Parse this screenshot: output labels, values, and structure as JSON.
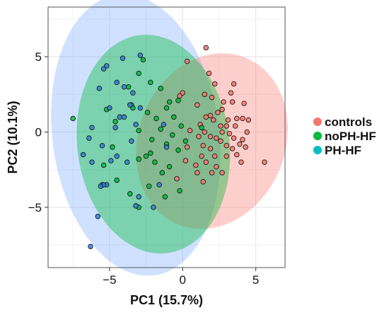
{
  "chart_data": {
    "type": "scatter",
    "title": "",
    "xlabel": "PC1 (15.7%)",
    "ylabel": "PC2 (10.1%)",
    "xlim": [
      -9.2,
      7.0
    ],
    "ylim": [
      -9.0,
      8.3
    ],
    "x_ticks": [
      -5,
      0,
      5
    ],
    "x_tick_labels": [
      "−5",
      "0",
      "5"
    ],
    "y_ticks": [
      -5,
      0,
      5
    ],
    "y_tick_labels": [
      "−5",
      "0",
      "5"
    ],
    "grid": true,
    "legend_position": "right",
    "series": [
      {
        "name": "controls",
        "color": "#f8766d",
        "ellipse": {
          "cx": 2.0,
          "cy": -0.6,
          "rx": 6.0,
          "ry": 5.0,
          "angle_deg": 65
        },
        "points": [
          [
            1.6,
            5.6
          ],
          [
            3.5,
            3.2
          ],
          [
            0.3,
            4.7
          ],
          [
            1.8,
            3.9
          ],
          [
            2.2,
            3.2
          ],
          [
            3.3,
            2.6
          ],
          [
            0.0,
            2.6
          ],
          [
            -0.2,
            2.4
          ],
          [
            2.0,
            2.3
          ],
          [
            3.4,
            2.0
          ],
          [
            1.5,
            2.5
          ],
          [
            2.8,
            2.0
          ],
          [
            4.2,
            1.9
          ],
          [
            2.7,
            1.5
          ],
          [
            2.4,
            1.3
          ],
          [
            1.0,
            1.8
          ],
          [
            1.6,
            1.0
          ],
          [
            1.9,
            1.1
          ],
          [
            2.1,
            0.8
          ],
          [
            3.1,
            0.8
          ],
          [
            3.7,
            0.9
          ],
          [
            4.1,
            0.9
          ],
          [
            4.5,
            0.8
          ],
          [
            1.2,
            0.5
          ],
          [
            2.6,
            0.4
          ],
          [
            3.0,
            0.4
          ],
          [
            3.6,
            0.4
          ],
          [
            0.5,
            0.1
          ],
          [
            1.5,
            0.0
          ],
          [
            2.7,
            0.0
          ],
          [
            3.2,
            -0.1
          ],
          [
            4.4,
            0.0
          ],
          [
            1.1,
            -0.3
          ],
          [
            1.9,
            -0.3
          ],
          [
            2.3,
            -0.4
          ],
          [
            3.5,
            -0.4
          ],
          [
            4.1,
            -0.5
          ],
          [
            1.4,
            -0.9
          ],
          [
            2.6,
            -0.6
          ],
          [
            3.0,
            -0.9
          ],
          [
            3.9,
            -0.8
          ],
          [
            0.3,
            -1.0
          ],
          [
            1.9,
            -1.1
          ],
          [
            3.4,
            -1.1
          ],
          [
            4.3,
            -1.0
          ],
          [
            1.3,
            -1.6
          ],
          [
            2.2,
            -1.6
          ],
          [
            3.0,
            -1.6
          ],
          [
            3.7,
            -1.5
          ],
          [
            0.9,
            -2.2
          ],
          [
            1.6,
            -2.0
          ],
          [
            2.3,
            -2.3
          ],
          [
            4.0,
            -2.0
          ],
          [
            1.0,
            -2.7
          ],
          [
            2.0,
            -2.7
          ],
          [
            2.7,
            -2.7
          ],
          [
            5.6,
            -2.0
          ],
          [
            -0.4,
            -3.1
          ],
          [
            1.4,
            -3.3
          ],
          [
            0.2,
            -1.9
          ]
        ]
      },
      {
        "name": "noPH-HF",
        "color": "#00ba38",
        "ellipse": {
          "cx": -2.0,
          "cy": -0.8,
          "rx": 7.3,
          "ry": 5.2,
          "angle_deg": 98
        },
        "points": [
          [
            -2.7,
            4.8
          ],
          [
            -3.0,
            3.9
          ],
          [
            -2.2,
            3.3
          ],
          [
            -3.7,
            3.0
          ],
          [
            -1.5,
            2.9
          ],
          [
            -0.9,
            2.0
          ],
          [
            -0.3,
            2.1
          ],
          [
            -3.5,
            1.8
          ],
          [
            -3.4,
            1.6
          ],
          [
            -2.4,
            1.3
          ],
          [
            -1.1,
            1.6
          ],
          [
            -5.2,
            1.5
          ],
          [
            -0.6,
            1.0
          ],
          [
            -1.8,
            0.9
          ],
          [
            -7.5,
            0.9
          ],
          [
            -4.6,
            0.7
          ],
          [
            -0.1,
            0.4
          ],
          [
            1.3,
            0.3
          ],
          [
            -1.5,
            0.2
          ],
          [
            -3.0,
            0.1
          ],
          [
            -0.7,
            -0.2
          ],
          [
            -2.1,
            -0.5
          ],
          [
            0.2,
            -0.6
          ],
          [
            -1.1,
            -0.8
          ],
          [
            -4.8,
            -1.0
          ],
          [
            -2.2,
            -1.4
          ],
          [
            -0.3,
            -1.2
          ],
          [
            -2.5,
            -1.6
          ],
          [
            -3.0,
            -1.8
          ],
          [
            -1.9,
            -2.0
          ],
          [
            -0.9,
            -2.3
          ],
          [
            -5.4,
            -2.2
          ],
          [
            -1.4,
            -2.7
          ],
          [
            -4.5,
            -3.2
          ],
          [
            -2.3,
            -3.6
          ],
          [
            -0.2,
            -3.9
          ],
          [
            -3.6,
            -4.1
          ],
          [
            -1.2,
            -4.3
          ],
          [
            -3.0,
            -5.0
          ]
        ]
      },
      {
        "name": "PH-HF",
        "color": "#00bfc4",
        "marker_color": "#2e80d6",
        "ellipse": {
          "cx": -3.2,
          "cy": -0.2,
          "rx": 9.4,
          "ry": 5.7,
          "angle_deg": 98
        },
        "points": [
          [
            -2.9,
            5.1
          ],
          [
            -4.1,
            4.9
          ],
          [
            -5.2,
            4.4
          ],
          [
            -5.4,
            4.2
          ],
          [
            -4.5,
            3.3
          ],
          [
            -4.0,
            3.0
          ],
          [
            -5.7,
            2.9
          ],
          [
            -3.4,
            2.6
          ],
          [
            -3.6,
            1.8
          ],
          [
            -2.9,
            1.6
          ],
          [
            -5.0,
            1.6
          ],
          [
            -4.3,
            1.0
          ],
          [
            -4.0,
            1.0
          ],
          [
            -3.2,
            0.5
          ],
          [
            -1.3,
            0.5
          ],
          [
            -6.2,
            0.3
          ],
          [
            -4.6,
            0.3
          ],
          [
            -6.4,
            -0.4
          ],
          [
            -3.5,
            -0.6
          ],
          [
            -5.5,
            -0.9
          ],
          [
            -1.1,
            -1.0
          ],
          [
            -4.5,
            -1.6
          ],
          [
            -6.8,
            -1.5
          ],
          [
            -6.2,
            -2.0
          ],
          [
            -3.8,
            -2.0
          ],
          [
            -5.5,
            -3.5
          ],
          [
            -5.2,
            -3.5
          ],
          [
            -5.4,
            -3.5
          ],
          [
            -5.6,
            -3.6
          ],
          [
            -1.6,
            -3.5
          ],
          [
            -3.0,
            -4.3
          ],
          [
            -2.0,
            -5.0
          ],
          [
            -5.8,
            -5.6
          ],
          [
            -6.3,
            -7.6
          ],
          [
            -3.2,
            -4.9
          ],
          [
            -4.9,
            -1.9
          ]
        ]
      }
    ]
  }
}
